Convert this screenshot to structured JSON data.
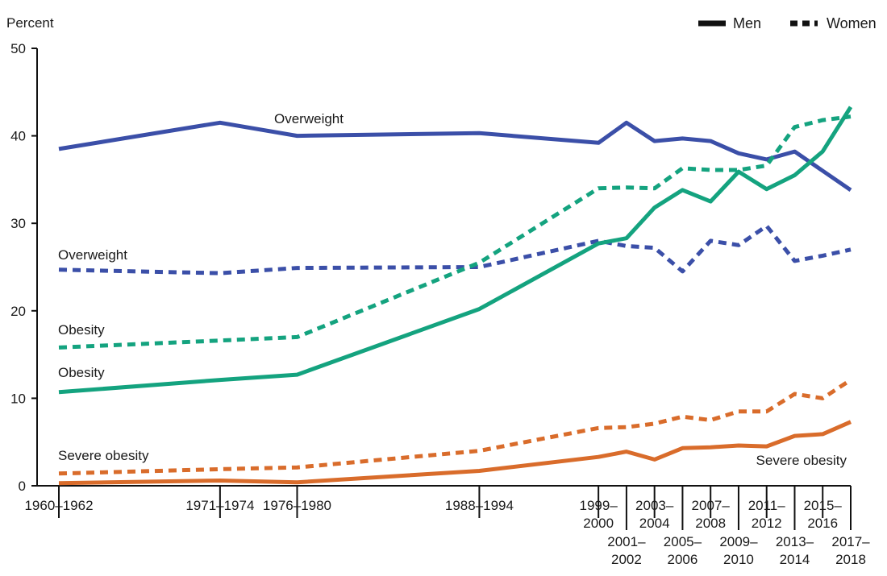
{
  "chart_data": {
    "type": "line",
    "ylabel": "Percent",
    "ylim": [
      0,
      50
    ],
    "yticks": [
      0,
      10,
      20,
      30,
      40,
      50
    ],
    "grid": false,
    "legend_placement": "top-right",
    "legend": [
      {
        "name": "Men",
        "style": "solid"
      },
      {
        "name": "Women",
        "style": "dashed"
      }
    ],
    "periods": [
      {
        "label": [
          "1960–1962"
        ],
        "tier": "upper"
      },
      {
        "label": [
          "1971–1974"
        ],
        "tier": "upper"
      },
      {
        "label": [
          "1976–1980"
        ],
        "tier": "upper"
      },
      {
        "label": [
          "1988–1994"
        ],
        "tier": "upper"
      },
      {
        "label": [
          "1999–",
          "2000"
        ],
        "tier": "upper"
      },
      {
        "label": [
          "2001–",
          "2002"
        ],
        "tier": "lower"
      },
      {
        "label": [
          "2003–",
          "2004"
        ],
        "tier": "upper"
      },
      {
        "label": [
          "2005–",
          "2006"
        ],
        "tier": "lower"
      },
      {
        "label": [
          "2007–",
          "2008"
        ],
        "tier": "upper"
      },
      {
        "label": [
          "2009–",
          "2010"
        ],
        "tier": "lower"
      },
      {
        "label": [
          "2011–",
          "2012"
        ],
        "tier": "upper"
      },
      {
        "label": [
          "2013–",
          "2014"
        ],
        "tier": "lower"
      },
      {
        "label": [
          "2015–",
          "2016"
        ],
        "tier": "upper"
      },
      {
        "label": [
          "2017–",
          "2018"
        ],
        "tier": "lower"
      }
    ],
    "x": [
      1961,
      1972.5,
      1978,
      1991,
      1999.5,
      2001.5,
      2003.5,
      2005.5,
      2007.5,
      2009.5,
      2011.5,
      2013.5,
      2015.5,
      2017.5
    ],
    "xlim": [
      1961,
      2017.5
    ],
    "series": [
      {
        "name": "Overweight",
        "sex": "Men",
        "style": "solid",
        "color": "#3b4fa8",
        "values": [
          38.5,
          41.5,
          40.0,
          40.3,
          39.2,
          41.5,
          39.4,
          39.7,
          39.4,
          38.0,
          37.3,
          38.2,
          36.0,
          33.8
        ]
      },
      {
        "name": "Overweight",
        "sex": "Women",
        "style": "dashed",
        "color": "#3b4fa8",
        "values": [
          24.7,
          24.3,
          24.9,
          25.0,
          28.0,
          27.4,
          27.2,
          24.5,
          28.0,
          27.5,
          29.7,
          25.7,
          26.3,
          27.0
        ]
      },
      {
        "name": "Obesity",
        "sex": "Men",
        "style": "solid",
        "color": "#14a37f",
        "values": [
          10.7,
          12.1,
          12.7,
          20.2,
          27.7,
          28.3,
          31.8,
          33.8,
          32.5,
          35.9,
          33.9,
          35.5,
          38.2,
          43.3
        ]
      },
      {
        "name": "Obesity",
        "sex": "Women",
        "style": "dashed",
        "color": "#14a37f",
        "values": [
          15.8,
          16.6,
          17.0,
          25.5,
          34.0,
          34.1,
          34.0,
          36.3,
          36.1,
          36.1,
          36.6,
          41.0,
          41.8,
          42.2
        ]
      },
      {
        "name": "Severe obesity",
        "sex": "Men",
        "style": "solid",
        "color": "#d96c2b",
        "values": [
          0.3,
          0.6,
          0.4,
          1.7,
          3.3,
          3.9,
          3.0,
          4.3,
          4.4,
          4.6,
          4.5,
          5.7,
          5.9,
          7.3
        ]
      },
      {
        "name": "Severe obesity",
        "sex": "Women",
        "style": "dashed",
        "color": "#d96c2b",
        "values": [
          1.4,
          1.9,
          2.1,
          4.0,
          6.6,
          6.7,
          7.1,
          7.9,
          7.5,
          8.5,
          8.5,
          10.5,
          10.0,
          12.1
        ]
      }
    ],
    "annotations": [
      {
        "text": "Overweight",
        "series": 0
      },
      {
        "text": "Overweight",
        "series": 1
      },
      {
        "text": "Obesity",
        "series": 3
      },
      {
        "text": "Obesity",
        "series": 2
      },
      {
        "text": "Severe obesity",
        "series": 5
      },
      {
        "text": "Severe obesity",
        "series": 4
      }
    ]
  }
}
